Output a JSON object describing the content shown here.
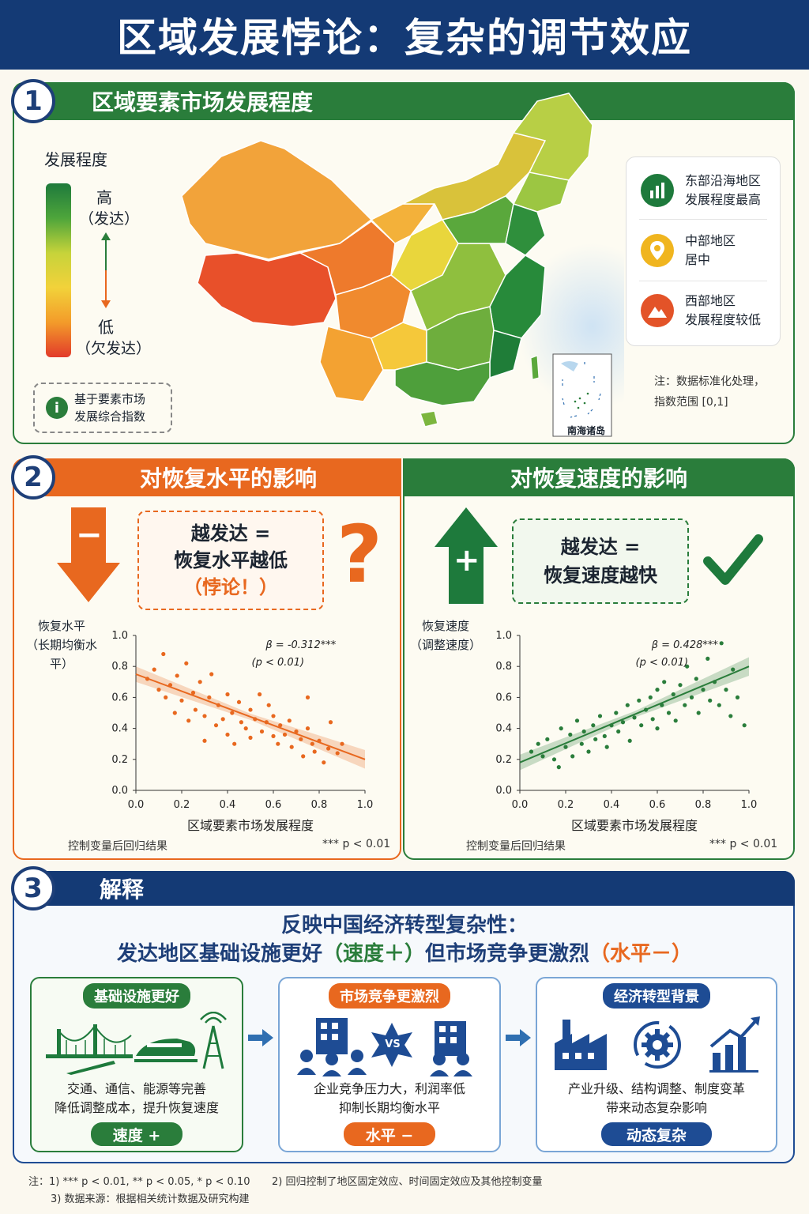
{
  "title": "区域发展悖论：复杂的调节效应",
  "s1": {
    "num": "1",
    "heading": "区域要素市场发展程度",
    "scale_title": "发展程度",
    "high": "高",
    "high_sub": "（发达）",
    "low": "低",
    "low_sub": "（欠发达）",
    "info": "基于要素市场\n发展综合指数",
    "legend": [
      {
        "l1": "东部沿海地区",
        "l2": "发展程度最高",
        "color": "#1e7a3c",
        "icon": "bar-chart-icon"
      },
      {
        "l1": "中部地区",
        "l2": "居中",
        "color": "#f0b51f",
        "icon": "location-pin-icon"
      },
      {
        "l1": "西部地区",
        "l2": "发展程度较低",
        "color": "#e35328",
        "icon": "mountain-icon"
      }
    ],
    "note": "注：数据标准化处理，\n指数范围 [0,1]",
    "inset": "南海诸岛",
    "colors": {
      "high": "#1e7a3c",
      "mid": "#f2d23a",
      "low": "#e23a2a"
    }
  },
  "s2": {
    "num": "2",
    "left_head": "对恢复水平的影响",
    "right_head": "对恢复速度的影响",
    "left_sign": "−",
    "right_sign": "+",
    "left_box": [
      "越发达 =",
      "恢复水平越低",
      "（悖论！）"
    ],
    "right_box": [
      "越发达 =",
      "恢复速度越快"
    ],
    "qmark": "?",
    "left_caption": "控制变量后回归结果",
    "right_caption": "控制变量后回归结果",
    "sig": "*** p < 0.01"
  },
  "chart_data": [
    {
      "type": "scatter",
      "ylabel": "恢复水平\n（长期均衡水平）",
      "xlabel": "区域要素市场发展程度",
      "xlim": [
        0,
        1
      ],
      "ylim": [
        0,
        1
      ],
      "xticks": [
        "0.0",
        "0.2",
        "0.4",
        "0.6",
        "0.8",
        "1.0"
      ],
      "yticks": [
        "0.0",
        "0.2",
        "0.4",
        "0.6",
        "0.8",
        "1.0"
      ],
      "annotation": [
        "β = -0.312***",
        "(p < 0.01)"
      ],
      "color": "#e8681f",
      "fit": [
        [
          0,
          0.75
        ],
        [
          1,
          0.2
        ]
      ],
      "points": [
        [
          0.05,
          0.72
        ],
        [
          0.08,
          0.78
        ],
        [
          0.1,
          0.65
        ],
        [
          0.12,
          0.88
        ],
        [
          0.13,
          0.6
        ],
        [
          0.15,
          0.68
        ],
        [
          0.17,
          0.5
        ],
        [
          0.18,
          0.74
        ],
        [
          0.2,
          0.58
        ],
        [
          0.22,
          0.82
        ],
        [
          0.23,
          0.45
        ],
        [
          0.25,
          0.63
        ],
        [
          0.26,
          0.52
        ],
        [
          0.28,
          0.7
        ],
        [
          0.3,
          0.48
        ],
        [
          0.3,
          0.32
        ],
        [
          0.32,
          0.6
        ],
        [
          0.33,
          0.75
        ],
        [
          0.35,
          0.42
        ],
        [
          0.36,
          0.55
        ],
        [
          0.38,
          0.46
        ],
        [
          0.4,
          0.62
        ],
        [
          0.4,
          0.36
        ],
        [
          0.42,
          0.5
        ],
        [
          0.43,
          0.3
        ],
        [
          0.45,
          0.57
        ],
        [
          0.46,
          0.44
        ],
        [
          0.48,
          0.4
        ],
        [
          0.5,
          0.52
        ],
        [
          0.5,
          0.34
        ],
        [
          0.52,
          0.46
        ],
        [
          0.54,
          0.62
        ],
        [
          0.55,
          0.38
        ],
        [
          0.57,
          0.44
        ],
        [
          0.58,
          0.55
        ],
        [
          0.6,
          0.35
        ],
        [
          0.6,
          0.48
        ],
        [
          0.62,
          0.3
        ],
        [
          0.63,
          0.42
        ],
        [
          0.65,
          0.36
        ],
        [
          0.67,
          0.45
        ],
        [
          0.68,
          0.28
        ],
        [
          0.7,
          0.38
        ],
        [
          0.72,
          0.33
        ],
        [
          0.73,
          0.22
        ],
        [
          0.75,
          0.4
        ],
        [
          0.75,
          0.6
        ],
        [
          0.77,
          0.3
        ],
        [
          0.78,
          0.25
        ],
        [
          0.8,
          0.32
        ],
        [
          0.82,
          0.18
        ],
        [
          0.84,
          0.27
        ],
        [
          0.85,
          0.44
        ],
        [
          0.88,
          0.24
        ],
        [
          0.9,
          0.3
        ]
      ]
    },
    {
      "type": "scatter",
      "ylabel": "恢复速度\n（调整速度）",
      "xlabel": "区域要素市场发展程度",
      "xlim": [
        0,
        1
      ],
      "ylim": [
        0,
        1
      ],
      "xticks": [
        "0.0",
        "0.2",
        "0.4",
        "0.6",
        "0.8",
        "1.0"
      ],
      "yticks": [
        "0.0",
        "0.2",
        "0.4",
        "0.6",
        "0.8",
        "1.0"
      ],
      "annotation": [
        "β = 0.428***",
        "(p < 0.01)"
      ],
      "color": "#2a7d3b",
      "fit": [
        [
          0,
          0.18
        ],
        [
          1,
          0.8
        ]
      ],
      "points": [
        [
          0.05,
          0.25
        ],
        [
          0.08,
          0.3
        ],
        [
          0.1,
          0.22
        ],
        [
          0.12,
          0.33
        ],
        [
          0.15,
          0.2
        ],
        [
          0.17,
          0.15
        ],
        [
          0.18,
          0.4
        ],
        [
          0.2,
          0.28
        ],
        [
          0.22,
          0.36
        ],
        [
          0.23,
          0.22
        ],
        [
          0.25,
          0.45
        ],
        [
          0.27,
          0.3
        ],
        [
          0.28,
          0.38
        ],
        [
          0.3,
          0.25
        ],
        [
          0.32,
          0.42
        ],
        [
          0.33,
          0.33
        ],
        [
          0.35,
          0.48
        ],
        [
          0.37,
          0.35
        ],
        [
          0.38,
          0.28
        ],
        [
          0.4,
          0.42
        ],
        [
          0.42,
          0.5
        ],
        [
          0.43,
          0.38
        ],
        [
          0.45,
          0.44
        ],
        [
          0.47,
          0.55
        ],
        [
          0.48,
          0.32
        ],
        [
          0.5,
          0.47
        ],
        [
          0.52,
          0.58
        ],
        [
          0.53,
          0.42
        ],
        [
          0.55,
          0.52
        ],
        [
          0.57,
          0.6
        ],
        [
          0.58,
          0.46
        ],
        [
          0.6,
          0.65
        ],
        [
          0.6,
          0.4
        ],
        [
          0.62,
          0.55
        ],
        [
          0.63,
          0.7
        ],
        [
          0.65,
          0.5
        ],
        [
          0.67,
          0.62
        ],
        [
          0.68,
          0.45
        ],
        [
          0.7,
          0.68
        ],
        [
          0.72,
          0.55
        ],
        [
          0.73,
          0.8
        ],
        [
          0.75,
          0.6
        ],
        [
          0.77,
          0.72
        ],
        [
          0.78,
          0.5
        ],
        [
          0.8,
          0.65
        ],
        [
          0.82,
          0.85
        ],
        [
          0.83,
          0.58
        ],
        [
          0.85,
          0.7
        ],
        [
          0.87,
          0.55
        ],
        [
          0.88,
          0.95
        ],
        [
          0.9,
          0.65
        ],
        [
          0.92,
          0.48
        ],
        [
          0.93,
          0.78
        ],
        [
          0.95,
          0.6
        ],
        [
          0.98,
          0.42
        ]
      ]
    }
  ],
  "s3": {
    "num": "3",
    "heading": "解释",
    "main1": "反映中国经济转型复杂性：",
    "main2a": "发达地区基础设施更好",
    "main2b": "（速度＋）",
    "main2c": "但市场竞争更激烈",
    "main2d": "（水平－）",
    "cards": [
      {
        "tag": "基础设施更好",
        "l1": "交通、通信、能源等完善",
        "l2": "降低调整成本，提升恢复速度",
        "pill": "速度 +",
        "color": "#2a7d3b"
      },
      {
        "tag": "市场竞争更激烈",
        "l1": "企业竞争压力大，利润率低",
        "l2": "抑制长期均衡水平",
        "pill": "水平 −",
        "color": "#e8681f"
      },
      {
        "tag": "经济转型背景",
        "l1": "产业升级、结构调整、制度变革",
        "l2": "带来动态复杂影响",
        "pill": "动态复杂",
        "color": "#1e4c94"
      }
    ],
    "vs": "VS"
  },
  "footnotes": {
    "f1": "注：1) *** p < 0.01,   ** p < 0.05, * p < 0.10",
    "f2": "2)  回归控制了地区固定效应、时间固定效应及其他控制变量",
    "f3": "3)  数据来源：根据相关统计数据及研究构建"
  }
}
